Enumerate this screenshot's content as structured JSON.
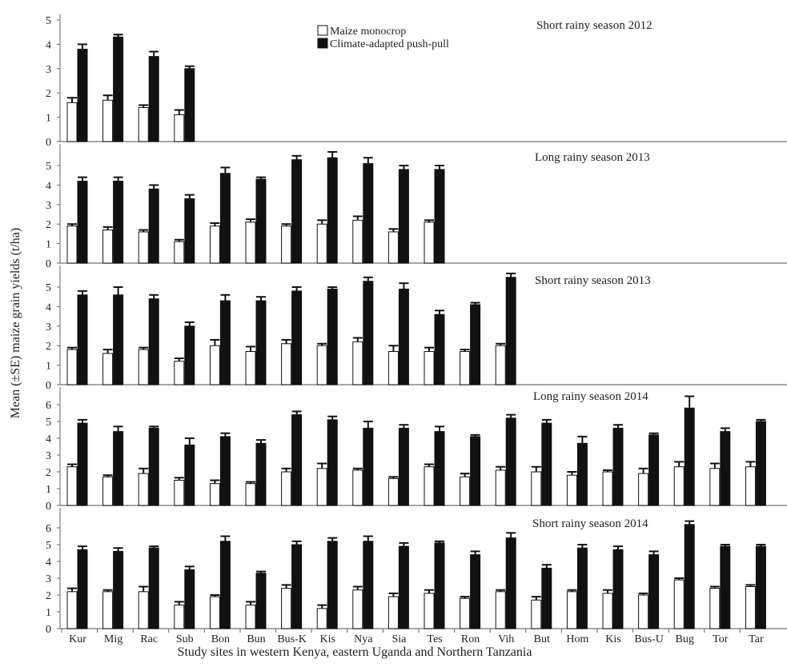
{
  "legend": {
    "mono_label": "Maize monocrop",
    "push_label": "Climate-adapted push-pull",
    "mono_color": "#ffffff",
    "push_color": "#111111"
  },
  "y_axis_label": "Mean (±SE) maize grain yields (t/ha)",
  "x_axis_label": "Study sites in western Kenya, eastern Uganda and Northern Tanzania",
  "x_sites": [
    "Kur",
    "Mig",
    "Rac",
    "Sub",
    "Bon",
    "Bun",
    "Bus-K",
    "Kis",
    "Nya",
    "Sia",
    "Tes",
    "Ron",
    "Vih",
    "But",
    "Hom",
    "Kis",
    "Bus-U",
    "Bug",
    "Tor",
    "Tar"
  ],
  "chart_data": [
    {
      "type": "bar",
      "title": "Short rainy season 2012",
      "ylim": [
        0,
        5
      ],
      "yticks": [
        0,
        1,
        2,
        3,
        4,
        5
      ],
      "series": [
        {
          "name": "Maize monocrop",
          "values": [
            1.6,
            1.7,
            1.4,
            1.1
          ],
          "se": [
            0.2,
            0.2,
            0.1,
            0.2
          ]
        },
        {
          "name": "Climate-adapted push-pull",
          "values": [
            3.8,
            4.3,
            3.5,
            3.0
          ],
          "se": [
            0.2,
            0.1,
            0.2,
            0.1
          ]
        }
      ]
    },
    {
      "type": "bar",
      "title": "Long rainy season 2013",
      "ylim": [
        0,
        6
      ],
      "yticks": [
        0,
        1,
        2,
        3,
        4,
        5
      ],
      "series": [
        {
          "name": "Maize monocrop",
          "values": [
            1.9,
            1.7,
            1.6,
            1.1,
            1.9,
            2.1,
            1.9,
            2.0,
            2.2,
            1.6,
            2.1
          ],
          "se": [
            0.1,
            0.15,
            0.1,
            0.1,
            0.15,
            0.15,
            0.1,
            0.2,
            0.2,
            0.15,
            0.1
          ]
        },
        {
          "name": "Climate-adapted push-pull",
          "values": [
            4.2,
            4.2,
            3.8,
            3.3,
            4.6,
            4.3,
            5.3,
            5.4,
            5.1,
            4.8,
            4.8
          ],
          "se": [
            0.2,
            0.2,
            0.2,
            0.2,
            0.3,
            0.1,
            0.2,
            0.3,
            0.3,
            0.2,
            0.2
          ]
        }
      ]
    },
    {
      "type": "bar",
      "title": "Short rainy season 2013",
      "ylim": [
        0,
        6
      ],
      "yticks": [
        0,
        1,
        2,
        3,
        4,
        5
      ],
      "series": [
        {
          "name": "Maize monocrop",
          "values": [
            1.8,
            1.6,
            1.8,
            1.2,
            2.0,
            1.7,
            2.1,
            2.0,
            2.2,
            1.7,
            1.7,
            1.7,
            2.0
          ],
          "se": [
            0.1,
            0.2,
            0.1,
            0.15,
            0.3,
            0.25,
            0.2,
            0.1,
            0.2,
            0.3,
            0.2,
            0.1,
            0.1
          ]
        },
        {
          "name": "Climate-adapted push-pull",
          "values": [
            4.6,
            4.6,
            4.4,
            3.0,
            4.3,
            4.3,
            4.8,
            4.9,
            5.3,
            4.9,
            3.6,
            4.1,
            5.5
          ],
          "se": [
            0.2,
            0.4,
            0.2,
            0.2,
            0.3,
            0.2,
            0.2,
            0.1,
            0.2,
            0.3,
            0.2,
            0.1,
            0.2
          ]
        }
      ]
    },
    {
      "type": "bar",
      "title": "Long rainy season 2014",
      "ylim": [
        0,
        7
      ],
      "yticks": [
        0,
        1,
        2,
        3,
        4,
        5,
        6
      ],
      "series": [
        {
          "name": "Maize monocrop",
          "values": [
            2.3,
            1.7,
            1.9,
            1.5,
            1.3,
            1.3,
            2.0,
            2.2,
            2.1,
            1.6,
            2.3,
            1.7,
            2.1,
            2.0,
            1.8,
            2.0,
            1.9,
            2.3,
            2.2,
            2.3
          ],
          "se": [
            0.15,
            0.1,
            0.3,
            0.15,
            0.2,
            0.1,
            0.2,
            0.3,
            0.1,
            0.1,
            0.15,
            0.2,
            0.2,
            0.3,
            0.2,
            0.1,
            0.3,
            0.3,
            0.3,
            0.3
          ]
        },
        {
          "name": "Climate-adapted push-pull",
          "values": [
            4.9,
            4.4,
            4.6,
            3.6,
            4.1,
            3.7,
            5.4,
            5.1,
            4.6,
            4.6,
            4.4,
            4.1,
            5.2,
            4.9,
            3.7,
            4.6,
            4.2,
            5.8,
            4.4,
            5.0
          ],
          "se": [
            0.2,
            0.3,
            0.1,
            0.4,
            0.2,
            0.2,
            0.2,
            0.2,
            0.4,
            0.2,
            0.3,
            0.1,
            0.2,
            0.2,
            0.4,
            0.2,
            0.1,
            0.7,
            0.2,
            0.1
          ]
        }
      ]
    },
    {
      "type": "bar",
      "title": "Short rainy season 2014",
      "ylim": [
        0,
        7
      ],
      "yticks": [
        0,
        1,
        2,
        3,
        4,
        5,
        6
      ],
      "series": [
        {
          "name": "Maize monocrop",
          "values": [
            2.2,
            2.2,
            2.2,
            1.4,
            1.9,
            1.4,
            2.4,
            1.2,
            2.3,
            1.9,
            2.1,
            1.8,
            2.2,
            1.7,
            2.2,
            2.1,
            2.0,
            2.9,
            2.4,
            2.5
          ],
          "se": [
            0.2,
            0.1,
            0.3,
            0.2,
            0.1,
            0.2,
            0.2,
            0.2,
            0.2,
            0.2,
            0.2,
            0.1,
            0.1,
            0.2,
            0.1,
            0.2,
            0.1,
            0.1,
            0.1,
            0.1
          ]
        },
        {
          "name": "Climate-adapted push-pull",
          "values": [
            4.7,
            4.6,
            4.8,
            3.5,
            5.2,
            3.3,
            5.0,
            5.2,
            5.2,
            4.9,
            5.1,
            4.4,
            5.4,
            3.6,
            4.8,
            4.7,
            4.4,
            6.2,
            4.9,
            4.9
          ],
          "se": [
            0.2,
            0.2,
            0.1,
            0.2,
            0.3,
            0.1,
            0.2,
            0.2,
            0.3,
            0.2,
            0.1,
            0.2,
            0.3,
            0.2,
            0.2,
            0.2,
            0.2,
            0.2,
            0.1,
            0.1
          ]
        }
      ]
    }
  ]
}
